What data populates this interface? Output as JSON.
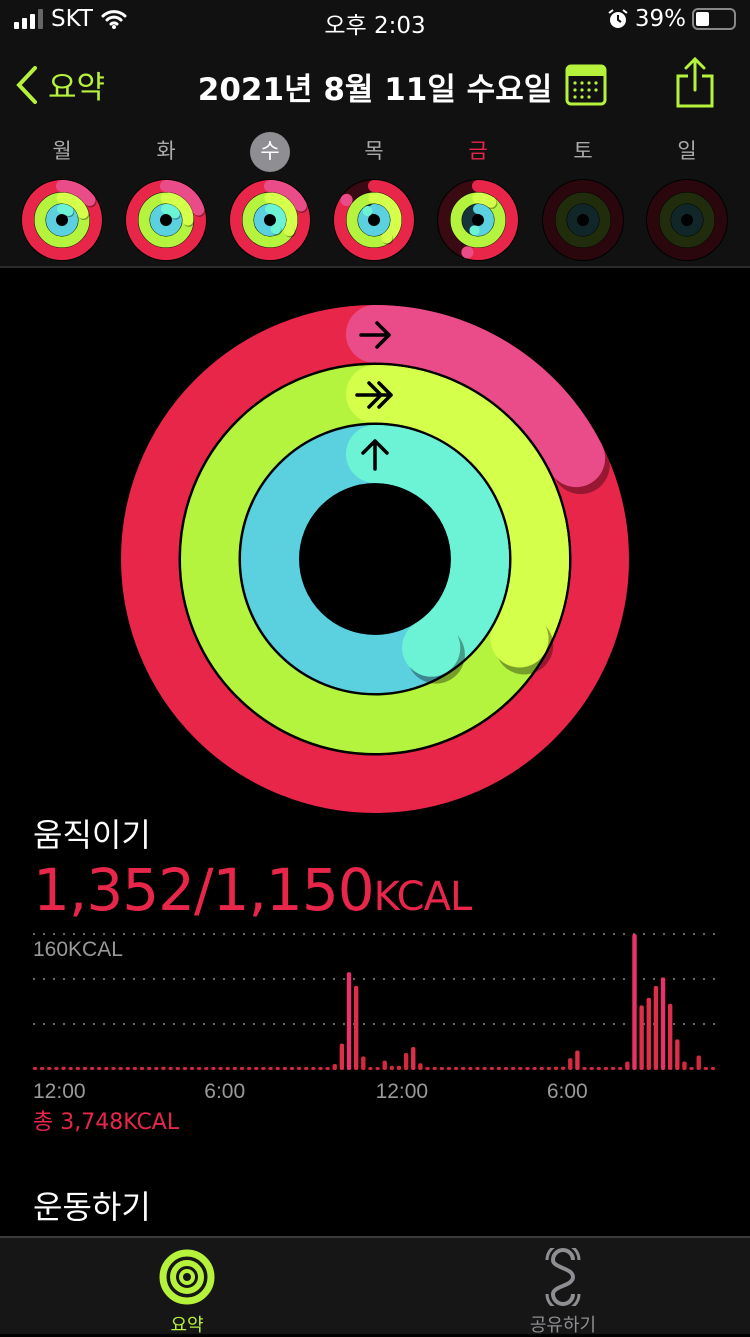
{
  "status": {
    "carrier": "SKT",
    "time": "오후 2:03",
    "battery": "39%",
    "battery_level": 0.39
  },
  "nav": {
    "back_label": "요약",
    "title": "2021년 8월 11일 수요일"
  },
  "colors": {
    "accent": "#b6f23b",
    "move": "#e8264a",
    "move_end": "#ea4c89",
    "exercise": "#b4f43e",
    "exercise_end": "#d4ff4a",
    "stand": "#5bd1e0",
    "stand_end": "#6cf3d5"
  },
  "week": [
    {
      "label": "월",
      "move": 1.15,
      "exercise": 1.2,
      "stand": 1.1
    },
    {
      "label": "화",
      "move": 1.2,
      "exercise": 1.25,
      "stand": 1.15
    },
    {
      "label": "수",
      "move": 1.18,
      "exercise": 1.33,
      "stand": 1.41,
      "selected": true
    },
    {
      "label": "목",
      "move": 0.85,
      "exercise": 1.4,
      "stand": 0.9
    },
    {
      "label": "금",
      "move": 0.55,
      "exercise": 1.1,
      "stand": 0.55,
      "highlight": true
    },
    {
      "label": "토",
      "move": 0,
      "exercise": 0,
      "stand": 0
    },
    {
      "label": "일",
      "move": 0,
      "exercise": 0,
      "stand": 0
    }
  ],
  "rings": {
    "move": 1.176,
    "exercise": 1.33,
    "stand": 1.41
  },
  "move": {
    "heading": "움직이기",
    "value": "1,352/1,150",
    "unit": "KCAL",
    "total": "총 3,748KCAL"
  },
  "exercise": {
    "heading": "운동하기"
  },
  "chart_data": {
    "type": "bar",
    "ymax_label": "160KCAL",
    "ylim": [
      0,
      160
    ],
    "grid": true,
    "x_ticks": [
      "12:00",
      "6:00",
      "12:00",
      "6:00"
    ],
    "values": [
      2,
      2,
      2,
      2,
      4,
      2,
      2,
      2,
      2,
      2,
      2,
      2,
      2,
      2,
      2,
      2,
      2,
      2,
      4,
      2,
      2,
      2,
      2,
      2,
      2,
      2,
      2,
      2,
      2,
      2,
      2,
      2,
      2,
      2,
      2,
      2,
      2,
      2,
      2,
      2,
      2,
      2,
      7,
      31,
      115,
      99,
      16,
      2,
      2,
      11,
      5,
      5,
      20,
      27,
      8,
      2,
      2,
      2,
      2,
      2,
      2,
      2,
      2,
      2,
      2,
      2,
      3,
      2,
      2,
      2,
      2,
      3,
      3,
      4,
      4,
      14,
      23,
      2,
      2,
      2,
      2,
      2,
      2,
      10,
      160,
      76,
      85,
      99,
      109,
      78,
      36,
      10,
      3,
      17,
      3,
      3
    ]
  },
  "tabs": [
    {
      "label": "요약",
      "active": true
    },
    {
      "label": "공유하기",
      "active": false
    }
  ]
}
